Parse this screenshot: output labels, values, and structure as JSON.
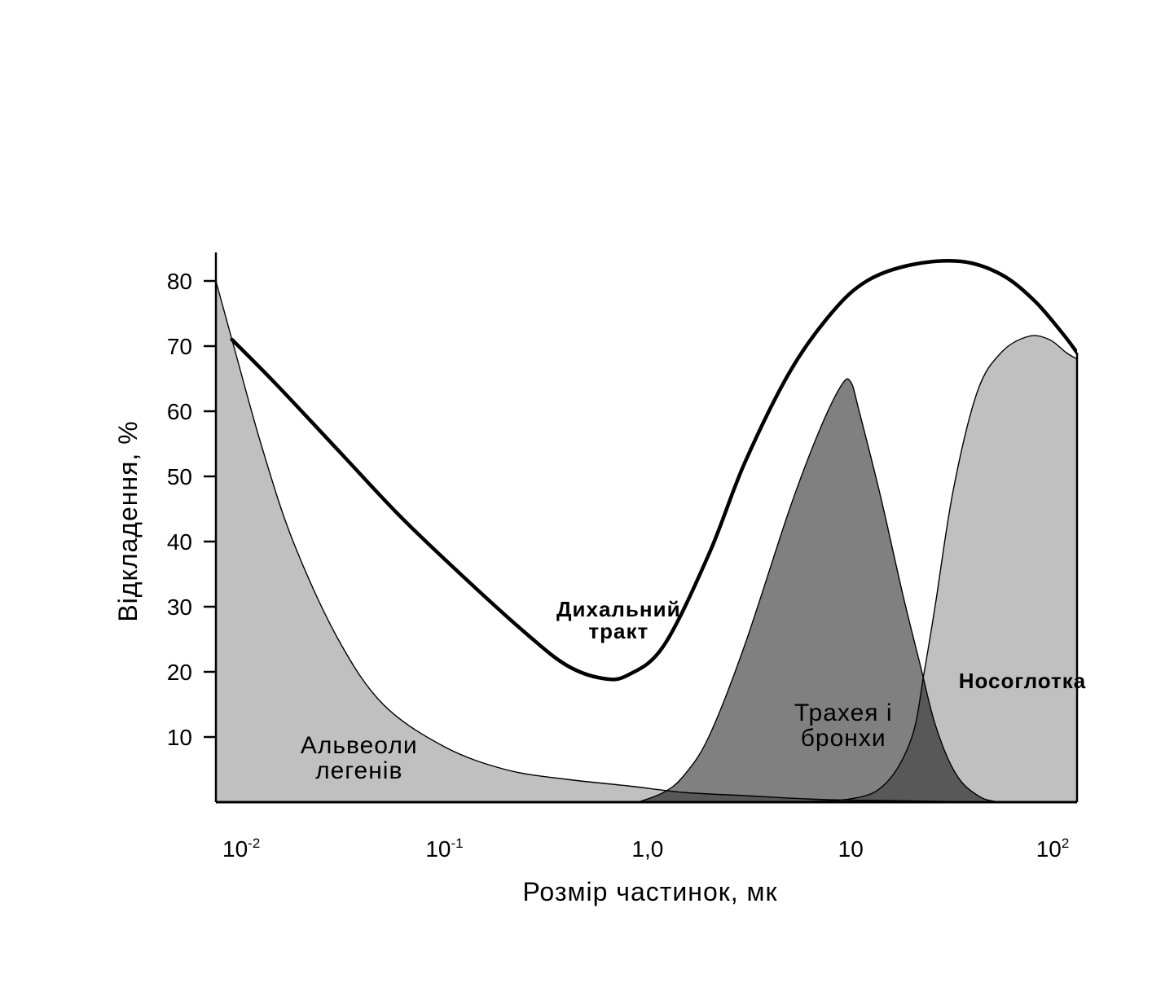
{
  "chart_data": {
    "type": "area",
    "xlabel": "Розмір частинок, мк",
    "ylabel": "Відкладення, %",
    "x_scale": "log",
    "xlim": [
      0.0075,
      130
    ],
    "ylim": [
      0,
      85
    ],
    "x_ticks": [
      {
        "value": 0.01,
        "base": "10",
        "exp": "-2"
      },
      {
        "value": 0.1,
        "base": "10",
        "exp": "-1"
      },
      {
        "value": 1,
        "base": "1,0",
        "exp": ""
      },
      {
        "value": 10,
        "base": "10",
        "exp": ""
      },
      {
        "value": 100,
        "base": "10",
        "exp": "2"
      }
    ],
    "y_ticks": [
      10,
      20,
      30,
      40,
      50,
      60,
      70,
      80
    ],
    "series": [
      {
        "name": "Альвеоли легенів",
        "color": "#c0c0c0",
        "style": "area",
        "points": [
          [
            0.0075,
            80
          ],
          [
            0.009,
            71
          ],
          [
            0.0125,
            55
          ],
          [
            0.018,
            40
          ],
          [
            0.03,
            25
          ],
          [
            0.05,
            15
          ],
          [
            0.1,
            8.5
          ],
          [
            0.2,
            5
          ],
          [
            0.4,
            3.5
          ],
          [
            0.8,
            2.5
          ],
          [
            1.5,
            1.5
          ],
          [
            3,
            1
          ],
          [
            6,
            0.5
          ],
          [
            10,
            0.3
          ],
          [
            20,
            0.2
          ],
          [
            50,
            0
          ],
          [
            130,
            0
          ]
        ]
      },
      {
        "name": "Трахея і бронхи",
        "color": "#808080",
        "style": "area",
        "points": [
          [
            0.9,
            0
          ],
          [
            1.2,
            1.5
          ],
          [
            1.5,
            4
          ],
          [
            2,
            10
          ],
          [
            3,
            24
          ],
          [
            5,
            45
          ],
          [
            7,
            57
          ],
          [
            9,
            64
          ],
          [
            10,
            64.5
          ],
          [
            11,
            60
          ],
          [
            14,
            47
          ],
          [
            18,
            32
          ],
          [
            22,
            21
          ],
          [
            26,
            12
          ],
          [
            32,
            5
          ],
          [
            40,
            1.5
          ],
          [
            55,
            0
          ],
          [
            130,
            0
          ]
        ]
      },
      {
        "name": "Носоглотка",
        "color": "#c0c0c0",
        "style": "area",
        "points": [
          [
            4,
            0
          ],
          [
            10,
            0.5
          ],
          [
            15,
            3
          ],
          [
            20,
            10
          ],
          [
            23,
            20
          ],
          [
            26,
            30
          ],
          [
            32,
            48
          ],
          [
            42,
            63
          ],
          [
            55,
            69
          ],
          [
            75,
            71.5
          ],
          [
            95,
            71
          ],
          [
            115,
            69
          ],
          [
            130,
            68
          ]
        ]
      },
      {
        "name": "Дихальний тракт",
        "color": "#000000",
        "style": "line",
        "points": [
          [
            0.009,
            71
          ],
          [
            0.015,
            64
          ],
          [
            0.03,
            54
          ],
          [
            0.06,
            44
          ],
          [
            0.12,
            35
          ],
          [
            0.25,
            26
          ],
          [
            0.4,
            21
          ],
          [
            0.6,
            19
          ],
          [
            0.8,
            19.5
          ],
          [
            1.2,
            24
          ],
          [
            2,
            38
          ],
          [
            3,
            52
          ],
          [
            5,
            66
          ],
          [
            8,
            75
          ],
          [
            12,
            80
          ],
          [
            20,
            82.5
          ],
          [
            35,
            83
          ],
          [
            55,
            81
          ],
          [
            80,
            77
          ],
          [
            110,
            72
          ],
          [
            130,
            69
          ]
        ]
      }
    ],
    "overlap_color": "#585858",
    "annotations": [
      {
        "target": "Дихальний тракт",
        "lines": [
          "Дихальний",
          "тракт"
        ],
        "x": 0.72,
        "y": 28.5,
        "bold": true
      },
      {
        "target": "Альвеоли легенів",
        "lines": [
          "Альвеоли",
          "легенів"
        ],
        "x": 0.038,
        "y": 7.5,
        "bold": false
      },
      {
        "target": "Трахея і бронхи",
        "lines": [
          "Трахея і",
          "бронхи"
        ],
        "x": 9.2,
        "y": 12.5,
        "bold": false
      },
      {
        "target": "Носоглотка",
        "lines": [
          "Носоглотка"
        ],
        "x": 70,
        "y": 17.5,
        "bold": true
      }
    ],
    "grid": false,
    "legend": "none"
  }
}
